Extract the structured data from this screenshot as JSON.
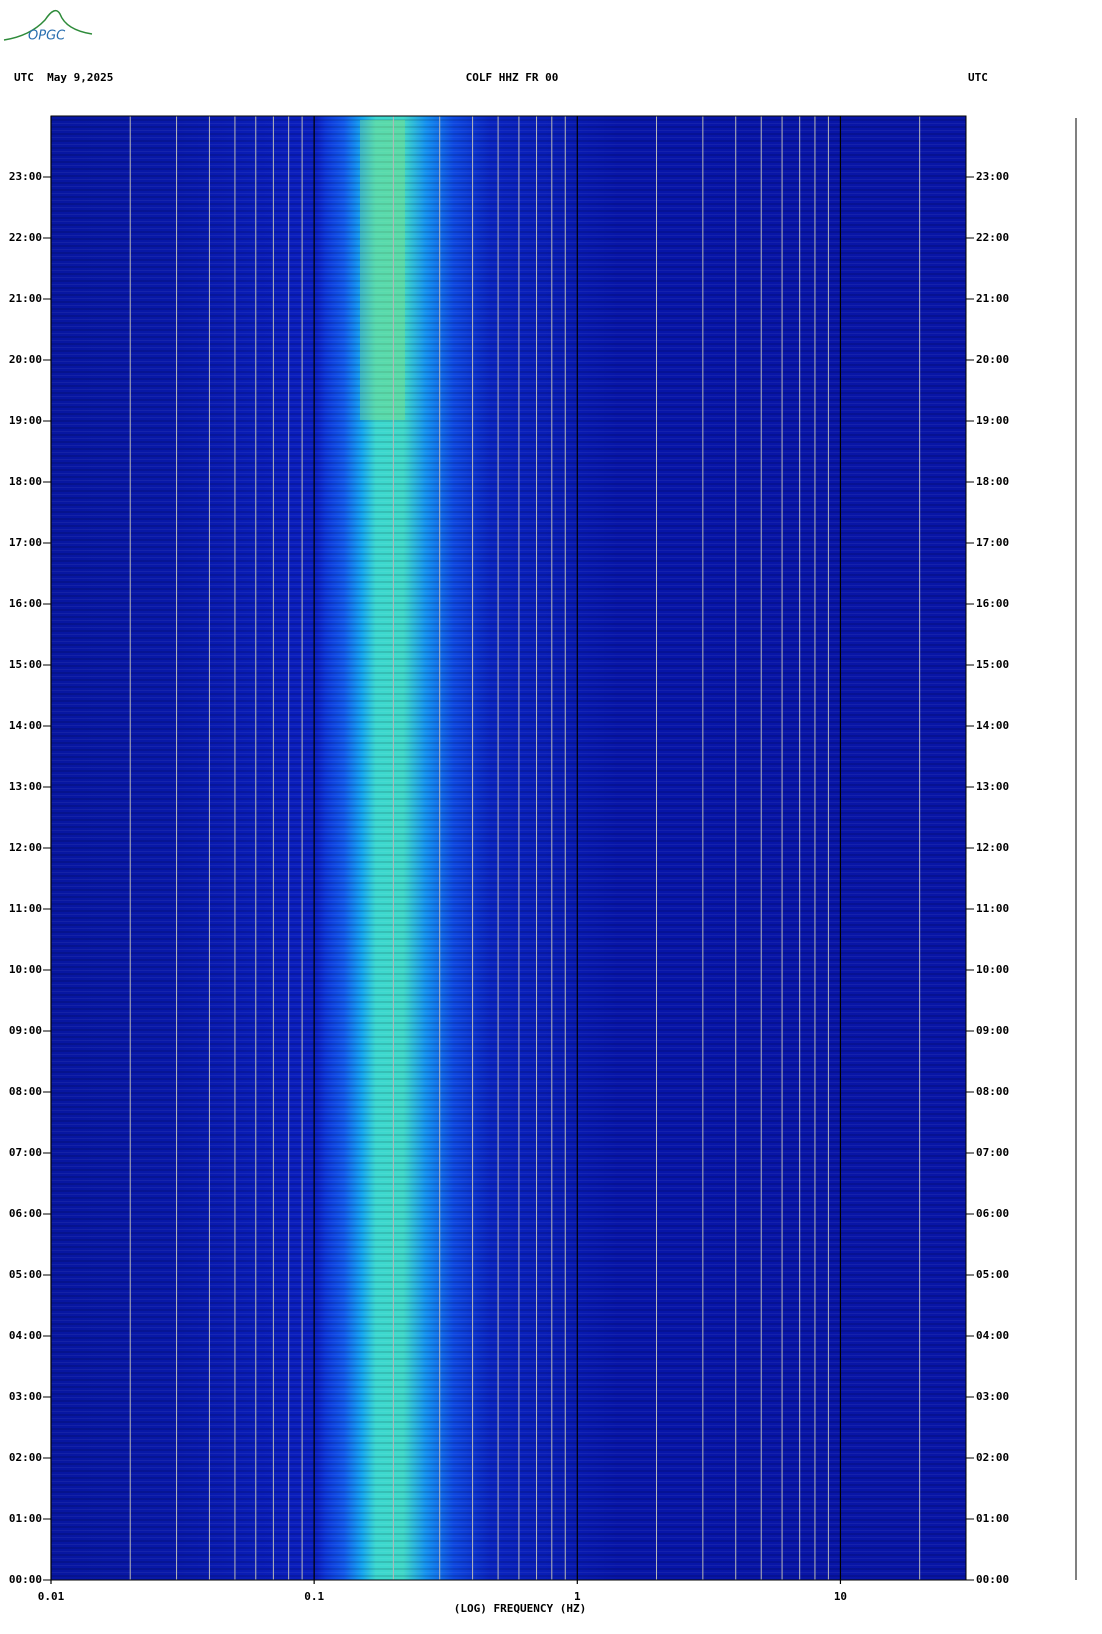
{
  "logo": "OPGC",
  "chart_data": {
    "type": "spectrogram",
    "header_left": "UTC  May 9,2025",
    "title": "COLF HHZ FR 00",
    "header_right": "UTC",
    "xlabel": "(LOG) FREQUENCY (HZ)",
    "xscale": "log",
    "xlim": [
      0.01,
      30
    ],
    "xticks": [
      {
        "value": 0.01,
        "label": "0.01"
      },
      {
        "value": 0.1,
        "label": "0.1"
      },
      1,
      10
    ],
    "x_minor_ticks": [
      0.02,
      0.03,
      0.04,
      0.05,
      0.06,
      0.07,
      0.08,
      0.09,
      0.2,
      0.3,
      0.4,
      0.5,
      0.6,
      0.7,
      0.8,
      0.9,
      2,
      3,
      4,
      5,
      6,
      7,
      8,
      9,
      20
    ],
    "ylim": [
      0,
      24
    ],
    "yticks": [
      {
        "value": 0,
        "label": "00:00"
      },
      {
        "value": 1,
        "label": "01:00"
      },
      {
        "value": 2,
        "label": "02:00"
      },
      {
        "value": 3,
        "label": "03:00"
      },
      {
        "value": 4,
        "label": "04:00"
      },
      {
        "value": 5,
        "label": "05:00"
      },
      {
        "value": 6,
        "label": "06:00"
      },
      {
        "value": 7,
        "label": "07:00"
      },
      {
        "value": 8,
        "label": "08:00"
      },
      {
        "value": 9,
        "label": "09:00"
      },
      {
        "value": 10,
        "label": "10:00"
      },
      {
        "value": 11,
        "label": "11:00"
      },
      {
        "value": 12,
        "label": "12:00"
      },
      {
        "value": 13,
        "label": "13:00"
      },
      {
        "value": 14,
        "label": "14:00"
      },
      {
        "value": 15,
        "label": "15:00"
      },
      {
        "value": 16,
        "label": "16:00"
      },
      {
        "value": 17,
        "label": "17:00"
      },
      {
        "value": 18,
        "label": "18:00"
      },
      {
        "value": 19,
        "label": "19:00"
      },
      {
        "value": 20,
        "label": "20:00"
      },
      {
        "value": 21,
        "label": "21:00"
      },
      {
        "value": 22,
        "label": "22:00"
      },
      {
        "value": 23,
        "label": "23:00"
      }
    ]
  }
}
